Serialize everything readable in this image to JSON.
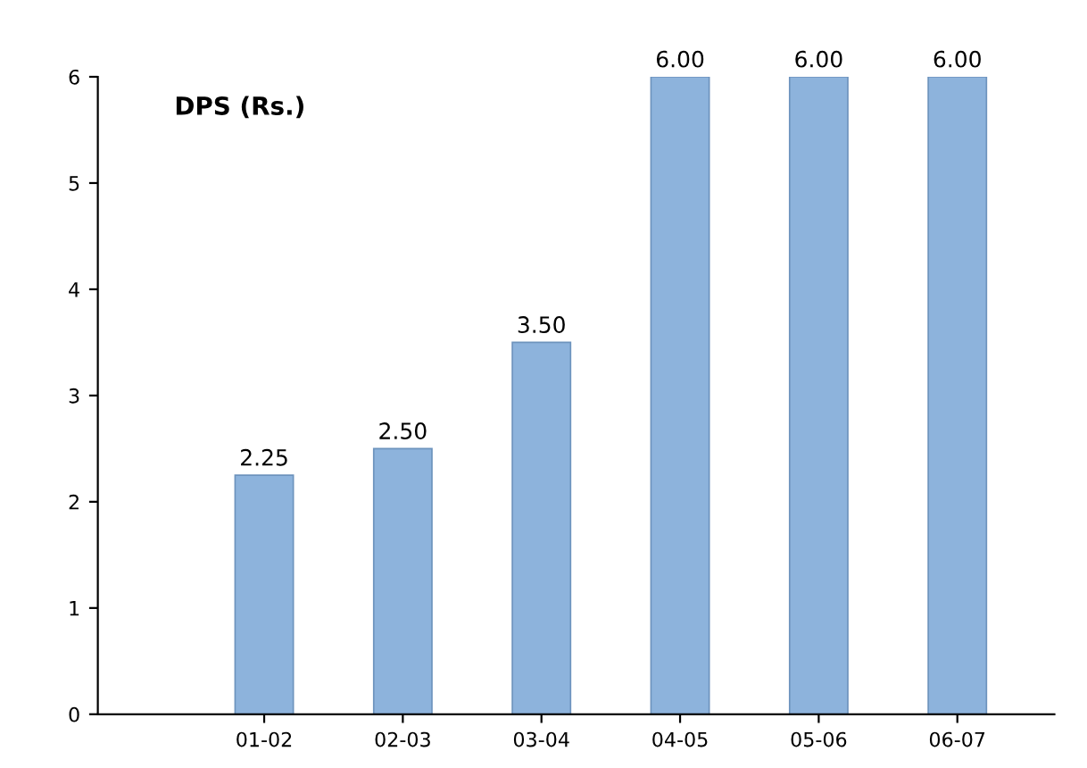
{
  "chart_data": {
    "type": "bar",
    "title": "DPS (Rs.)",
    "categories": [
      "01-02",
      "02-03",
      "03-04",
      "04-05",
      "05-06",
      "06-07"
    ],
    "values": [
      2.25,
      2.5,
      3.5,
      6,
      6,
      6
    ],
    "value_labels": [
      "2.25",
      "2.50",
      "3.50",
      "6.00",
      "6.00",
      "6.00"
    ],
    "color": "#8db3dc",
    "ylim": [
      0,
      6
    ],
    "yticks": [
      0,
      1,
      2,
      3,
      4,
      5,
      6
    ],
    "grid": false
  }
}
